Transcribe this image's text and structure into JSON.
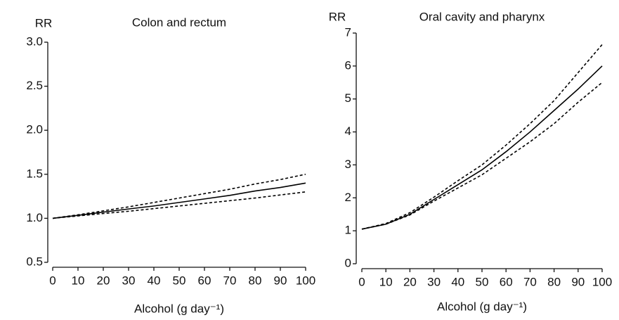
{
  "chart_data": [
    {
      "type": "line",
      "title": "Colon and rectum",
      "y_label": "RR",
      "x_label": "Alcohol (g day⁻¹)",
      "x": [
        0,
        10,
        20,
        30,
        40,
        50,
        60,
        70,
        80,
        90,
        100
      ],
      "series": [
        {
          "color": "#000000",
          "style": "solid",
          "values": [
            1.0,
            1.034,
            1.07,
            1.106,
            1.14,
            1.18,
            1.22,
            1.26,
            1.31,
            1.35,
            1.4
          ]
        },
        {
          "color": "#000000",
          "style": "dashed",
          "values": [
            1.0,
            1.04,
            1.085,
            1.13,
            1.18,
            1.23,
            1.28,
            1.33,
            1.39,
            1.44,
            1.5
          ]
        },
        {
          "color": "#000000",
          "style": "dashed",
          "values": [
            1.0,
            1.027,
            1.054,
            1.08,
            1.11,
            1.14,
            1.17,
            1.2,
            1.23,
            1.265,
            1.3
          ]
        }
      ],
      "xlim": [
        0,
        100
      ],
      "xticks": [
        0,
        10,
        20,
        30,
        40,
        50,
        60,
        70,
        80,
        90,
        100
      ],
      "ylim": [
        0.5,
        3.0
      ],
      "yticks": [
        0.5,
        {
          "value": 1,
          "label": "1.0"
        },
        1.5,
        {
          "value": 2,
          "label": "2.0"
        },
        2.5,
        {
          "value": 3,
          "label": "3.0"
        }
      ],
      "grid": false
    },
    {
      "type": "line",
      "title": "Oral cavity and pharynx",
      "y_label": "RR",
      "x_label": "Alcohol (g day⁻¹)",
      "x": [
        0,
        10,
        20,
        30,
        40,
        50,
        60,
        70,
        80,
        90,
        100
      ],
      "series": [
        {
          "color": "#000000",
          "style": "solid",
          "values": [
            1.05,
            1.2,
            1.5,
            1.95,
            2.4,
            2.85,
            3.4,
            4.0,
            4.65,
            5.3,
            6.0
          ]
        },
        {
          "color": "#000000",
          "style": "dashed",
          "values": [
            1.05,
            1.22,
            1.55,
            2.02,
            2.52,
            3.0,
            3.6,
            4.25,
            4.95,
            5.8,
            6.65
          ]
        },
        {
          "color": "#000000",
          "style": "dashed",
          "values": [
            1.05,
            1.2,
            1.48,
            1.9,
            2.3,
            2.7,
            3.2,
            3.7,
            4.25,
            4.9,
            5.5
          ]
        }
      ],
      "xlim": [
        0,
        100
      ],
      "xticks": [
        0,
        10,
        20,
        30,
        40,
        50,
        60,
        70,
        80,
        90,
        100
      ],
      "ylim": [
        0,
        7
      ],
      "yticks": [
        0,
        1,
        2,
        3,
        4,
        5,
        6,
        7
      ],
      "grid": false
    }
  ]
}
